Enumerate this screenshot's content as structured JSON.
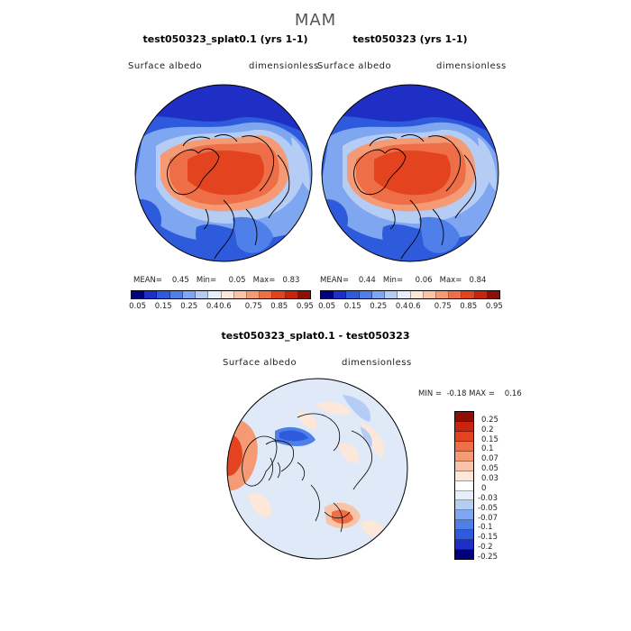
{
  "figure": {
    "title": "MAM"
  },
  "panels": [
    {
      "title": "test050323_splat0.1 (yrs 1-1)",
      "field": "Surface albedo",
      "units": "dimensionless",
      "stats": {
        "mean_label": "MEAN=",
        "mean": "0.45",
        "min_label": "Min=",
        "min": "0.05",
        "max_label": "Max=",
        "max": "0.83"
      }
    },
    {
      "title": "test050323 (yrs 1-1)",
      "field": "Surface albedo",
      "units": "dimensionless",
      "stats": {
        "mean_label": "MEAN=",
        "mean": "0.44",
        "min_label": "Min=",
        "min": "0.06",
        "max_label": "Max=",
        "max": "0.84"
      }
    },
    {
      "title": "test050323_splat0.1 - test050323",
      "field": "Surface albedo",
      "units": "dimensionless",
      "stats": {
        "min_label": "MIN =",
        "min": "-0.18",
        "max_label": "MAX =",
        "max": "0.16"
      }
    }
  ],
  "colorbars": {
    "absolute": {
      "colors": [
        "#00007f",
        "#1f2ec4",
        "#2e5bdc",
        "#4f7fe8",
        "#7fa6f0",
        "#b5ccf5",
        "#e6eefa",
        "#fde7d8",
        "#f8c3a6",
        "#f49b76",
        "#ee6e47",
        "#e3441f",
        "#c9250e",
        "#8f0f06"
      ],
      "labels": [
        "0.05",
        "0.15",
        "0.25",
        "0.4",
        "0.6",
        "0.75",
        "0.85",
        "0.95"
      ]
    },
    "difference": {
      "colors": [
        "#8f0f06",
        "#c9250e",
        "#e3441f",
        "#ee6e47",
        "#f49b76",
        "#f8c3a6",
        "#fde7d8",
        "#ffffff",
        "#e6eefa",
        "#b5ccf5",
        "#7fa6f0",
        "#4f7fe8",
        "#2e5bdc",
        "#1f2ec4",
        "#00007f"
      ],
      "labels": [
        "0.25",
        "0.2",
        "0.15",
        "0.1",
        "0.07",
        "0.05",
        "0.03",
        "0",
        "-0.03",
        "-0.05",
        "-0.07",
        "-0.1",
        "-0.15",
        "-0.2",
        "-0.25"
      ]
    }
  },
  "colors": {
    "ice_red": "#ee6e47",
    "deep_red": "#e3441f",
    "deep_blue": "#1f2ec4",
    "mid_blue": "#4f7fe8",
    "light_blue": "#b5ccf5",
    "pale": "#fde7d8",
    "diff_background": "#dfe9f8"
  }
}
